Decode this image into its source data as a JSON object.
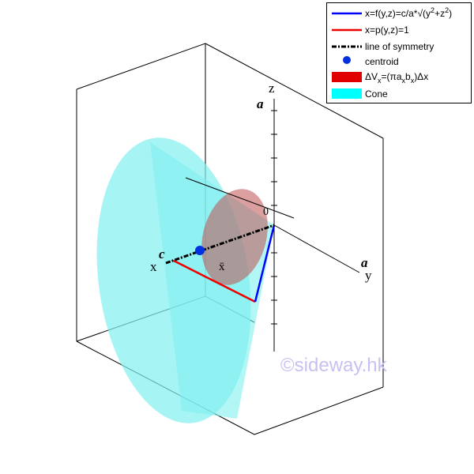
{
  "legend": [
    {
      "parts": [
        "x=f(y,z)=c/a*√(y",
        "2",
        "+z",
        "2",
        ")"
      ]
    },
    {
      "parts": [
        "x=p(y,z)=1"
      ]
    },
    {
      "parts": [
        "line of symmetry"
      ]
    },
    {
      "parts": [
        "centroid"
      ]
    },
    {
      "parts": [
        "ΔV",
        "x",
        "=(πa",
        "x",
        "b",
        "x",
        ")Δx"
      ]
    },
    {
      "parts": [
        "Cone"
      ]
    }
  ],
  "labels": {
    "z": "z",
    "a_top": "a",
    "origin": "0",
    "x": "x",
    "c": "c",
    "y": "y",
    "a_right": "a",
    "xbar": "x̄"
  },
  "watermark": "©sideway.hk"
}
